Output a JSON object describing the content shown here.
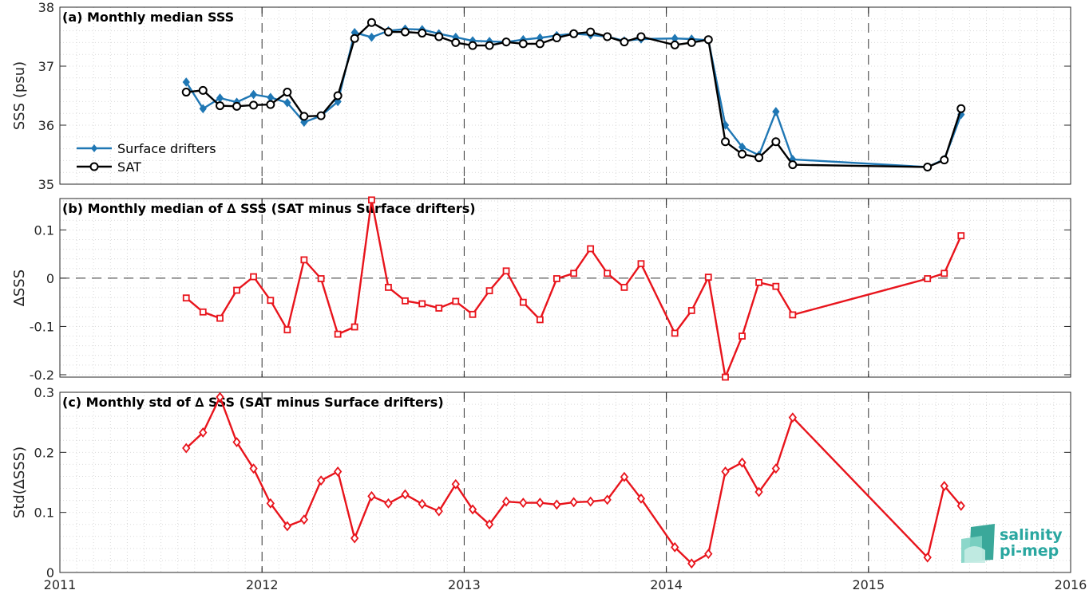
{
  "logo": {
    "line1": "salinity",
    "line2": "pi-mep"
  },
  "x_ticks": [
    "2011",
    "2012",
    "2013",
    "2014",
    "2015",
    "2016"
  ],
  "colors": {
    "drifters": "#1f77b4",
    "sat": "#000000",
    "delta": "#e8141c"
  },
  "chart_data": [
    {
      "type": "line",
      "title": "(a) Monthly median SSS",
      "ylabel": "SSS (psu)",
      "xlim": [
        2011,
        2016
      ],
      "ylim": [
        35,
        38
      ],
      "yticks": [
        "35",
        "36",
        "37",
        "38"
      ],
      "grid": true,
      "legend": "left",
      "x": [
        2011.625,
        2011.708,
        2011.792,
        2011.875,
        2011.958,
        2012.042,
        2012.125,
        2012.208,
        2012.292,
        2012.375,
        2012.458,
        2012.542,
        2012.625,
        2012.708,
        2012.792,
        2012.875,
        2012.958,
        2013.042,
        2013.125,
        2013.208,
        2013.292,
        2013.375,
        2013.458,
        2013.542,
        2013.625,
        2013.708,
        2013.792,
        2013.875,
        2014.042,
        2014.125,
        2014.208,
        2014.292,
        2014.375,
        2014.458,
        2014.542,
        2014.625,
        2015.292,
        2015.375,
        2015.458
      ],
      "series": [
        {
          "name": "Surface drifters",
          "marker": "diamond",
          "values": [
            36.73,
            36.28,
            36.46,
            36.39,
            36.52,
            36.47,
            36.38,
            36.05,
            36.16,
            36.4,
            37.57,
            37.49,
            37.6,
            37.63,
            37.62,
            37.55,
            37.49,
            37.43,
            37.42,
            37.41,
            37.45,
            37.48,
            37.52,
            37.55,
            37.53,
            37.5,
            37.43,
            37.46,
            37.47,
            37.46,
            37.44,
            36.0,
            35.63,
            35.49,
            36.23,
            35.42,
            35.29,
            35.42,
            36.18
          ]
        },
        {
          "name": "SAT",
          "marker": "circle",
          "values": [
            36.56,
            36.59,
            36.33,
            36.32,
            36.34,
            36.35,
            36.56,
            36.15,
            36.16,
            36.5,
            37.47,
            37.74,
            37.58,
            37.58,
            37.56,
            37.5,
            37.4,
            37.35,
            37.35,
            37.41,
            37.38,
            37.38,
            37.48,
            37.55,
            37.58,
            37.5,
            37.41,
            37.5,
            37.36,
            37.4,
            37.45,
            35.72,
            35.51,
            35.45,
            35.72,
            35.33,
            35.29,
            35.41,
            36.28
          ]
        }
      ]
    },
    {
      "type": "line",
      "title": "(b) Monthly median of ∆ SSS (SAT minus Surface drifters)",
      "ylabel": "∆SSS",
      "xlim": [
        2011,
        2016
      ],
      "ylim": [
        -0.205,
        0.165
      ],
      "yticks": [
        "-0.2",
        "-0.1",
        "0",
        "0.1"
      ],
      "grid": true,
      "reference_line": 0,
      "x": [
        2011.625,
        2011.708,
        2011.792,
        2011.875,
        2011.958,
        2012.042,
        2012.125,
        2012.208,
        2012.292,
        2012.375,
        2012.458,
        2012.542,
        2012.625,
        2012.708,
        2012.792,
        2012.875,
        2012.958,
        2013.042,
        2013.125,
        2013.208,
        2013.292,
        2013.375,
        2013.458,
        2013.542,
        2013.625,
        2013.708,
        2013.792,
        2013.875,
        2014.042,
        2014.125,
        2014.208,
        2014.292,
        2014.375,
        2014.458,
        2014.542,
        2014.625,
        2015.292,
        2015.375,
        2015.458
      ],
      "series": [
        {
          "marker": "square",
          "values": [
            -0.041,
            -0.07,
            -0.083,
            -0.025,
            0.003,
            -0.046,
            -0.107,
            0.038,
            -0.001,
            -0.116,
            -0.101,
            0.162,
            -0.019,
            -0.047,
            -0.053,
            -0.062,
            -0.048,
            -0.075,
            -0.026,
            0.015,
            -0.05,
            -0.086,
            -0.001,
            0.01,
            0.061,
            0.01,
            -0.019,
            0.03,
            -0.114,
            -0.067,
            0.002,
            -0.205,
            -0.12,
            -0.009,
            -0.017,
            -0.076,
            -0.001,
            0.01,
            0.088
          ]
        }
      ]
    },
    {
      "type": "line",
      "title": "(c) Monthly std of ∆ SSS (SAT minus Surface drifters)",
      "ylabel": "Std(∆SSS)",
      "xlim": [
        2011,
        2016
      ],
      "ylim": [
        0,
        0.3
      ],
      "yticks": [
        "0",
        "0.1",
        "0.2",
        "0.3"
      ],
      "xticks": [
        "2011",
        "2012",
        "2013",
        "2014",
        "2015",
        "2016"
      ],
      "grid": true,
      "x": [
        2011.625,
        2011.708,
        2011.792,
        2011.875,
        2011.958,
        2012.042,
        2012.125,
        2012.208,
        2012.292,
        2012.375,
        2012.458,
        2012.542,
        2012.625,
        2012.708,
        2012.792,
        2012.875,
        2012.958,
        2013.042,
        2013.125,
        2013.208,
        2013.292,
        2013.375,
        2013.458,
        2013.542,
        2013.625,
        2013.708,
        2013.792,
        2013.875,
        2014.042,
        2014.125,
        2014.208,
        2014.292,
        2014.375,
        2014.458,
        2014.542,
        2014.625,
        2015.292,
        2015.375,
        2015.458
      ],
      "series": [
        {
          "marker": "diamond",
          "values": [
            0.207,
            0.233,
            0.292,
            0.217,
            0.173,
            0.115,
            0.077,
            0.088,
            0.153,
            0.168,
            0.057,
            0.127,
            0.115,
            0.13,
            0.114,
            0.102,
            0.147,
            0.105,
            0.08,
            0.118,
            0.116,
            0.116,
            0.113,
            0.117,
            0.118,
            0.121,
            0.159,
            0.123,
            0.042,
            0.015,
            0.031,
            0.168,
            0.183,
            0.134,
            0.173,
            0.258,
            0.025,
            0.144,
            0.111
          ]
        }
      ]
    }
  ]
}
